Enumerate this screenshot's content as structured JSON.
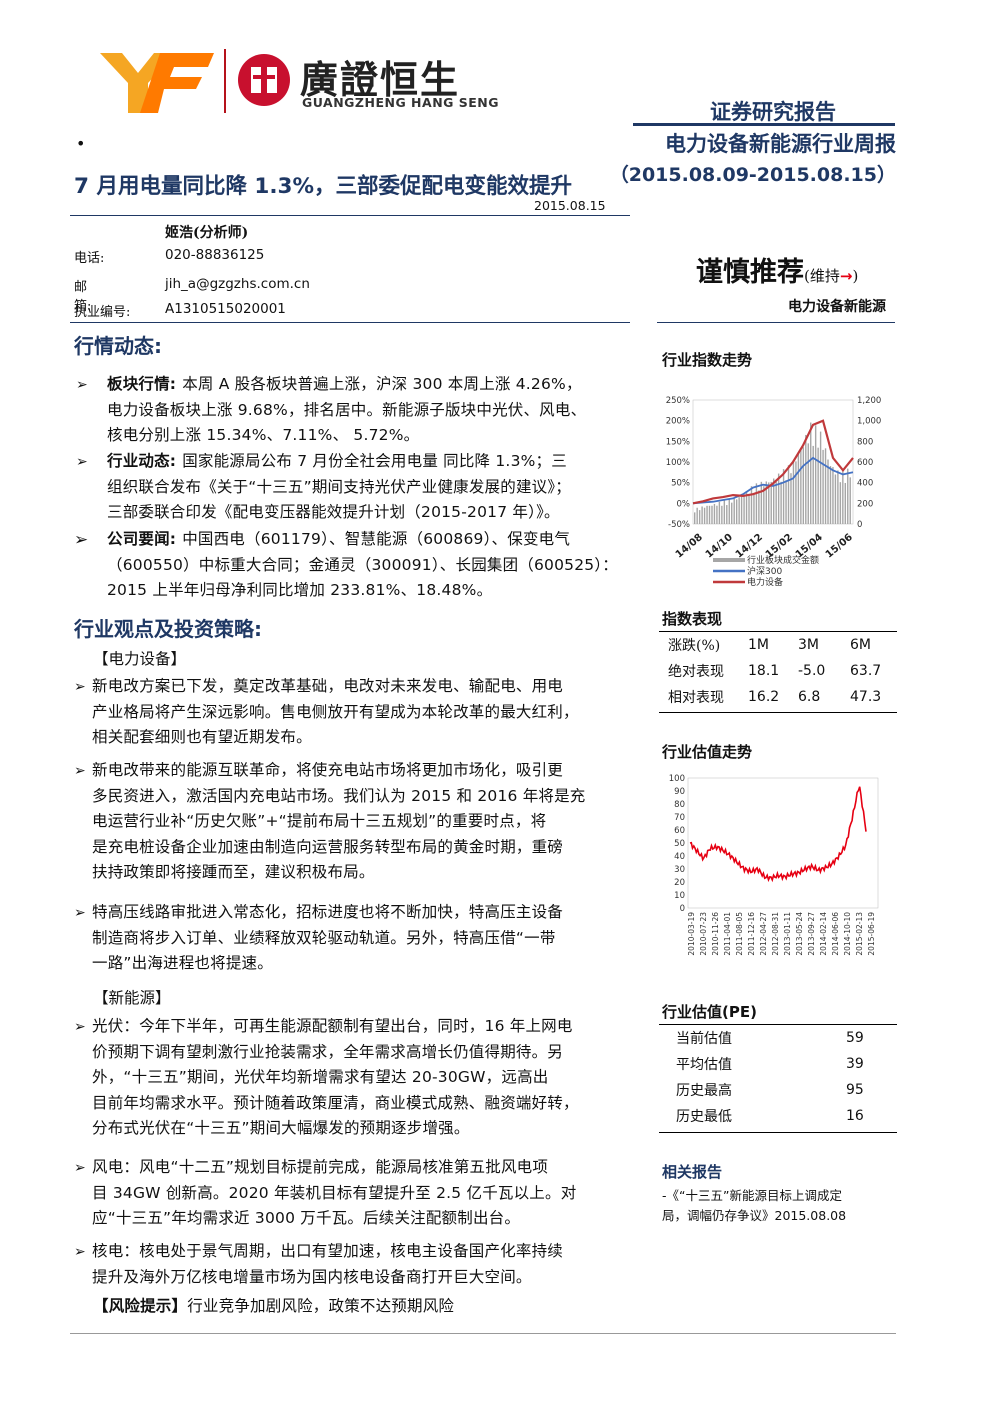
{
  "header": {
    "logo_cn": "廣證恒生",
    "logo_en": "GUANGZHENG HANG SENG",
    "report_type": "证券研究报告",
    "report_series": "电力设备新能源行业周报",
    "report_period": "（2015.08.09-2015.08.15）"
  },
  "title": {
    "main": "7 月用电量同比降 1.3%，三部委促配电变能效提升",
    "date": "2015.08.15",
    "dot": "•"
  },
  "analyst": {
    "name": "姬浩(分析师)",
    "fields": [
      {
        "label": "电话:",
        "value": "020-88836125"
      },
      {
        "label": "邮箱:",
        "value": "jih_a@gzgzhs.com.cn"
      },
      {
        "label": "执业编号:",
        "value": "A1310515020001"
      }
    ]
  },
  "rating": {
    "main": "谨慎推荐",
    "sub_open": "(维持",
    "arrow": "→",
    "sub_close": ")",
    "sector": "电力设备新能源"
  },
  "market": {
    "heading": "行情动态:",
    "items": [
      {
        "label": "板块行情:",
        "lines": [
          "本周 A 股各板块普遍上涨，沪深 300 本周上涨 4.26%，",
          "电力设备板块上涨 9.68%，排名居中。新能源子版块中光伏、风电、",
          "核电分别上涨 15.34%、7.11%、 5.72%。"
        ]
      },
      {
        "label": "行业动态:",
        "lines": [
          "国家能源局公布 7 月份全社会用电量 同比降 1.3%；三",
          "组织联合发布《关于“十三五”期间支持光伏产业健康发展的建议》；",
          "三部委联合印发《配电变压器能效提升计划（2015-2017 年）》。"
        ]
      },
      {
        "label": "公司要闻:",
        "lines": [
          "中国西电（601179）、智慧能源（600869）、保变电气",
          "（600550）中标重大合同；金通灵（300091）、长园集团（600525）：",
          "2015 上半年归母净利同比增加 233.81%、18.48%。"
        ]
      }
    ]
  },
  "strategy": {
    "heading": "行业观点及投资策略:",
    "power_tag": "【电力设备】",
    "power_items": [
      [
        "新电改方案已下发，奠定改革基础，电改对未来发电、输配电、用电",
        "产业格局将产生深远影响。售电侧放开有望成为本轮改革的最大红利，",
        "相关配套细则也有望近期发布。"
      ],
      [
        "新电改带来的能源互联革命，将使充电站市场将更加市场化，吸引更",
        "多民资进入，激活国内充电站市场。我们认为 2015 和 2016 年将是充",
        "电运营行业补“历史欠账”+“提前布局十三五规划”的重要时点，将",
        "是充电桩设备企业加速由制造向运营服务转型布局的黄金时期，重磅",
        "扶持政策即将接踵而至，建议积极布局。"
      ],
      [
        "特高压线路审批进入常态化，招标进度也将不断加快，特高压主设备",
        "制造商将步入订单、业绩释放双轮驱动轨道。另外，特高压借“一带",
        "一路”出海进程也将提速。"
      ]
    ],
    "new_energy_tag": "【新能源】",
    "new_energy_items": [
      [
        "光伏：今年下半年，可再生能源配额制有望出台，同时，16 年上网电",
        "价预期下调有望刺激行业抢装需求，全年需求高增长仍值得期待。另",
        "外，“十三五”期间，光伏年均新增需求有望达 20-30GW，远高出",
        "目前年均需求水平。预计随着政策厘清，商业模式成熟、融资端好转，",
        "分布式光伏在“十三五”期间大幅爆发的预期逐步增强。"
      ],
      [
        "风电：风电“十二五”规划目标提前完成，能源局核准第五批风电项",
        "目 34GW 创新高。2020 年装机目标有望提升至 2.5 亿千瓦以上。对",
        "应“十三五”年均需求近 3000 万千瓦。后续关注配额制出台。"
      ],
      [
        "核电：核电处于景气周期，出口有望加速，核电主设备国产化率持续",
        "提升及海外万亿核电增量市场为国内核电设备商打开巨大空间。"
      ]
    ],
    "risk_tag": "【风险提示】",
    "risk_text": "行业竞争加剧风险，政策不达预期风险"
  },
  "index_trend": {
    "title": "行业指数走势",
    "left_ticks": [
      "250%",
      "200%",
      "150%",
      "100%",
      "50%",
      "0%",
      "-50%"
    ],
    "right_ticks": [
      "1,200",
      "1,000",
      "800",
      "600",
      "400",
      "200",
      "0"
    ],
    "x_ticks": [
      "14/08",
      "14/10",
      "14/12",
      "15/02",
      "15/04",
      "15/06"
    ],
    "legend": [
      {
        "name": "行业板块成交金额",
        "color": "#a6a6a6"
      },
      {
        "name": "沪深300",
        "color": "#4472c4"
      },
      {
        "name": "电力设备",
        "color": "#c0393b"
      }
    ]
  },
  "index_perf": {
    "title": "指数表现",
    "header": [
      "涨跌(%)",
      "1M",
      "3M",
      "6M"
    ],
    "rows": [
      [
        "绝对表现",
        "18.1",
        "-5.0",
        "63.7"
      ],
      [
        "相对表现",
        "16.2",
        "6.8",
        "47.3"
      ]
    ]
  },
  "valuation_trend": {
    "title": "行业估值走势",
    "y_ticks": [
      "100",
      "90",
      "80",
      "70",
      "60",
      "50",
      "40",
      "30",
      "20",
      "10",
      "0"
    ],
    "x_ticks": [
      "2010-03-19",
      "2010-07-23",
      "2010-11-26",
      "2011-04-01",
      "2011-08-05",
      "2011-12-16",
      "2012-04-27",
      "2012-08-31",
      "2013-01-11",
      "2013-05-24",
      "2013-09-27",
      "2014-02-14",
      "2014-06-06",
      "2014-10-10",
      "2015-02-13",
      "2015-06-19"
    ],
    "line_color": "#e60012"
  },
  "pe": {
    "title": "行业估值(PE)",
    "rows": [
      [
        "当前估值",
        "59"
      ],
      [
        "平均估值",
        "39"
      ],
      [
        "历史最高",
        "95"
      ],
      [
        "历史最低",
        "16"
      ]
    ]
  },
  "related": {
    "title": "相关报告",
    "lines": [
      "-《“十三五”新能源目标上调成定",
      "局，调幅仍存争议》2015.08.08"
    ]
  },
  "chart_data": [
    {
      "type": "line",
      "title": "行业指数走势",
      "x_ticks": [
        "14/08",
        "14/10",
        "14/12",
        "15/02",
        "15/04",
        "15/06"
      ],
      "ylim_left": [
        -50,
        250
      ],
      "ylim_right": [
        0,
        1200
      ],
      "series": [
        {
          "name": "沪深300",
          "axis": "left",
          "values": [
            0,
            2,
            4,
            8,
            12,
            22,
            38,
            45,
            42,
            50,
            60,
            90,
            110,
            95,
            80,
            70,
            75
          ]
        },
        {
          "name": "电力设备",
          "axis": "left",
          "values": [
            0,
            5,
            12,
            15,
            20,
            18,
            22,
            30,
            48,
            70,
            100,
            140,
            190,
            200,
            110,
            80,
            110
          ]
        },
        {
          "name": "行业板块成交金额",
          "axis": "right",
          "values": [
            150,
            180,
            200,
            230,
            250,
            300,
            380,
            420,
            450,
            520,
            600,
            800,
            1000,
            900,
            600,
            500,
            550
          ]
        }
      ]
    },
    {
      "type": "line",
      "title": "行业估值走势",
      "ylim": [
        0,
        100
      ],
      "x_ticks": [
        "2010-03-19",
        "2010-07-23",
        "2010-11-26",
        "2011-04-01",
        "2011-08-05",
        "2011-12-16",
        "2012-04-27",
        "2012-08-31",
        "2013-01-11",
        "2013-05-24",
        "2013-09-27",
        "2014-02-14",
        "2014-06-06",
        "2014-10-10",
        "2015-02-13",
        "2015-06-19"
      ],
      "series": [
        {
          "values": [
            50,
            44,
            38,
            46,
            47,
            44,
            40,
            35,
            30,
            28,
            30,
            24,
            23,
            25,
            24,
            26,
            27,
            30,
            32,
            29,
            31,
            34,
            40,
            48,
            70,
            95,
            60
          ]
        }
      ]
    }
  ]
}
